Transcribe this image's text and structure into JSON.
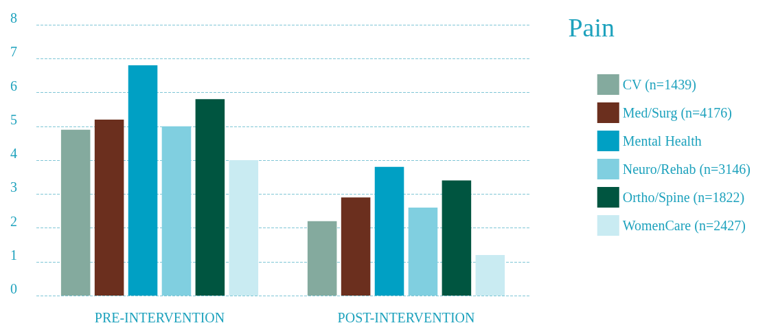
{
  "chart_data": {
    "type": "bar",
    "title": "Pain",
    "categories": [
      "PRE-INTERVENTION",
      "POST-INTERVENTION"
    ],
    "series": [
      {
        "name": "CV (n=1439)",
        "color": "#84aa9e",
        "values": [
          4.9,
          2.2
        ]
      },
      {
        "name": "Med/Surg (n=4176)",
        "color": "#6b2f1e",
        "values": [
          5.2,
          2.9
        ]
      },
      {
        "name": "Mental Health",
        "color": "#00a0c4",
        "values": [
          6.8,
          3.8
        ]
      },
      {
        "name": "Neuro/Rehab (n=3146)",
        "color": "#80cfe0",
        "values": [
          5.0,
          2.6
        ]
      },
      {
        "name": "Ortho/Spine (n=1822)",
        "color": "#005540",
        "values": [
          5.8,
          3.4
        ]
      },
      {
        "name": "WomenCare (n=2427)",
        "color": "#c9ebf2",
        "values": [
          4.0,
          1.2
        ]
      }
    ],
    "ylim": [
      0,
      8
    ],
    "yticks": [
      0,
      1,
      2,
      3,
      4,
      5,
      6,
      7,
      8
    ],
    "grid": "y",
    "legend": "right"
  }
}
